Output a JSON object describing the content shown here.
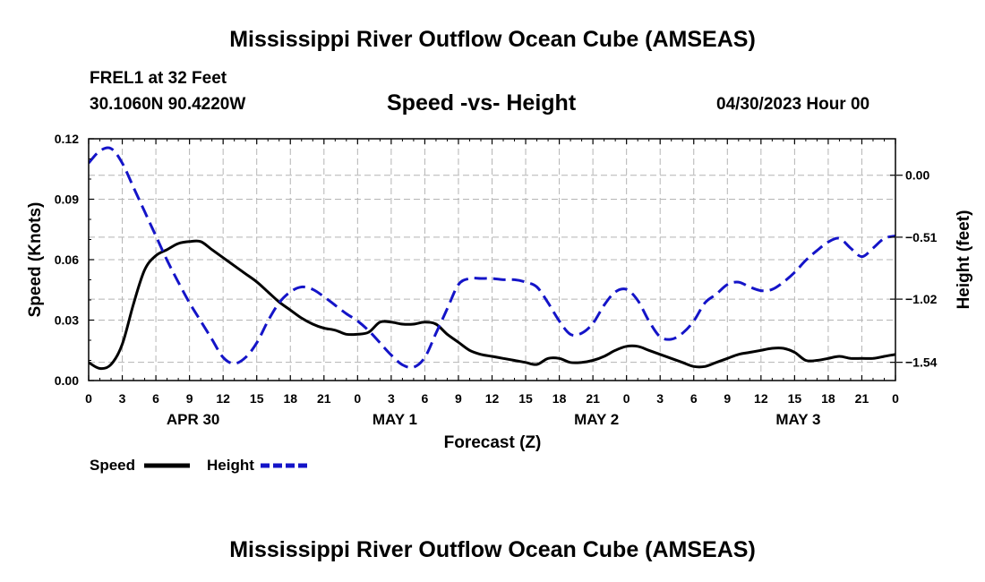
{
  "header": {
    "title": "Mississippi River Outflow Ocean Cube (AMSEAS)",
    "station": "FREL1 at 32 Feet",
    "coordinates": "30.1060N  90.4220W",
    "subtitle": "Speed -vs- Height",
    "datetime": "04/30/2023 Hour 00"
  },
  "footer": {
    "title": "Mississippi River Outflow Ocean Cube (AMSEAS)"
  },
  "colors": {
    "speed": "#000000",
    "height": "#1414c8",
    "grid": "#b4b4b4"
  },
  "chart_data": {
    "type": "line",
    "title": "Speed -vs- Height",
    "xlabel": "Forecast (Z)",
    "ylabel": "Speed (Knots)",
    "y2label": "Height (feet)",
    "xlim": [
      0,
      72
    ],
    "ylim": [
      0,
      0.12
    ],
    "y2lim": [
      -1.69,
      0.3
    ],
    "x_ticks": [
      0,
      3,
      6,
      9,
      12,
      15,
      18,
      21,
      24,
      27,
      30,
      33,
      36,
      39,
      42,
      45,
      48,
      51,
      54,
      57,
      60,
      63,
      66,
      69,
      72
    ],
    "x_tick_labels": [
      "0",
      "3",
      "6",
      "9",
      "12",
      "15",
      "18",
      "21",
      "0",
      "3",
      "6",
      "9",
      "12",
      "15",
      "18",
      "21",
      "0",
      "3",
      "6",
      "9",
      "12",
      "15",
      "18",
      "21",
      "0"
    ],
    "date_labels": [
      {
        "x": 9,
        "label": "APR 30"
      },
      {
        "x": 27,
        "label": "MAY 1"
      },
      {
        "x": 45,
        "label": "MAY 2"
      },
      {
        "x": 63,
        "label": "MAY 3"
      }
    ],
    "y_ticks": [
      0,
      0.03,
      0.06,
      0.09,
      0.12
    ],
    "y_tick_labels": [
      "0.00",
      "0.03",
      "0.06",
      "0.09",
      "0.12"
    ],
    "y2_ticks": [
      0.0,
      -0.51,
      -1.02,
      -1.54
    ],
    "y2_tick_labels": [
      "0.00",
      "−0.51",
      "−1.02",
      "−1.54"
    ],
    "grid": true,
    "legend": [
      {
        "name": "Speed",
        "style": "solid"
      },
      {
        "name": "Height",
        "style": "dashed"
      }
    ],
    "series": [
      {
        "name": "Speed",
        "axis": "left",
        "x": [
          0,
          1,
          2,
          3,
          4,
          5,
          6,
          7,
          8,
          9,
          10,
          11,
          12,
          13,
          14,
          15,
          16,
          17,
          18,
          19,
          20,
          21,
          22,
          23,
          24,
          25,
          26,
          27,
          28,
          29,
          30,
          31,
          32,
          33,
          34,
          35,
          36,
          37,
          38,
          39,
          40,
          41,
          42,
          43,
          44,
          45,
          46,
          47,
          48,
          49,
          50,
          51,
          52,
          53,
          54,
          55,
          56,
          57,
          58,
          59,
          60,
          61,
          62,
          63,
          64,
          65,
          66,
          67,
          68,
          69,
          70,
          71,
          72
        ],
        "values": [
          0.009,
          0.006,
          0.008,
          0.018,
          0.038,
          0.055,
          0.062,
          0.065,
          0.068,
          0.069,
          0.069,
          0.065,
          0.061,
          0.057,
          0.053,
          0.049,
          0.044,
          0.039,
          0.035,
          0.031,
          0.028,
          0.026,
          0.025,
          0.023,
          0.023,
          0.024,
          0.029,
          0.029,
          0.028,
          0.028,
          0.029,
          0.028,
          0.023,
          0.019,
          0.015,
          0.013,
          0.012,
          0.011,
          0.01,
          0.009,
          0.008,
          0.011,
          0.011,
          0.009,
          0.009,
          0.01,
          0.012,
          0.015,
          0.017,
          0.017,
          0.015,
          0.013,
          0.011,
          0.009,
          0.007,
          0.007,
          0.009,
          0.011,
          0.013,
          0.014,
          0.015,
          0.016,
          0.016,
          0.014,
          0.01,
          0.01,
          0.011,
          0.012,
          0.011,
          0.011,
          0.011,
          0.012,
          0.013
        ]
      },
      {
        "name": "Height",
        "axis": "right",
        "x": [
          0,
          1,
          2,
          3,
          4,
          5,
          6,
          7,
          8,
          9,
          10,
          11,
          12,
          13,
          14,
          15,
          16,
          17,
          18,
          19,
          20,
          21,
          22,
          23,
          24,
          25,
          26,
          27,
          28,
          29,
          30,
          31,
          32,
          33,
          34,
          35,
          36,
          37,
          38,
          39,
          40,
          41,
          42,
          43,
          44,
          45,
          46,
          47,
          48,
          49,
          50,
          51,
          52,
          53,
          54,
          55,
          56,
          57,
          58,
          59,
          60,
          61,
          62,
          63,
          64,
          65,
          66,
          67,
          68,
          69,
          70,
          71,
          72
        ],
        "values": [
          0.1,
          0.2,
          0.22,
          0.1,
          -0.1,
          -0.3,
          -0.5,
          -0.7,
          -0.88,
          -1.05,
          -1.2,
          -1.35,
          -1.5,
          -1.55,
          -1.5,
          -1.38,
          -1.2,
          -1.05,
          -0.96,
          -0.92,
          -0.94,
          -1.0,
          -1.07,
          -1.14,
          -1.2,
          -1.28,
          -1.38,
          -1.48,
          -1.56,
          -1.58,
          -1.5,
          -1.3,
          -1.1,
          -0.9,
          -0.85,
          -0.85,
          -0.85,
          -0.86,
          -0.86,
          -0.88,
          -0.92,
          -1.05,
          -1.2,
          -1.31,
          -1.3,
          -1.22,
          -1.07,
          -0.96,
          -0.94,
          -1.03,
          -1.2,
          -1.33,
          -1.35,
          -1.3,
          -1.2,
          -1.05,
          -0.98,
          -0.9,
          -0.88,
          -0.92,
          -0.95,
          -0.94,
          -0.88,
          -0.8,
          -0.7,
          -0.62,
          -0.55,
          -0.52,
          -0.6,
          -0.67,
          -0.6,
          -0.52,
          -0.5
        ]
      }
    ]
  }
}
